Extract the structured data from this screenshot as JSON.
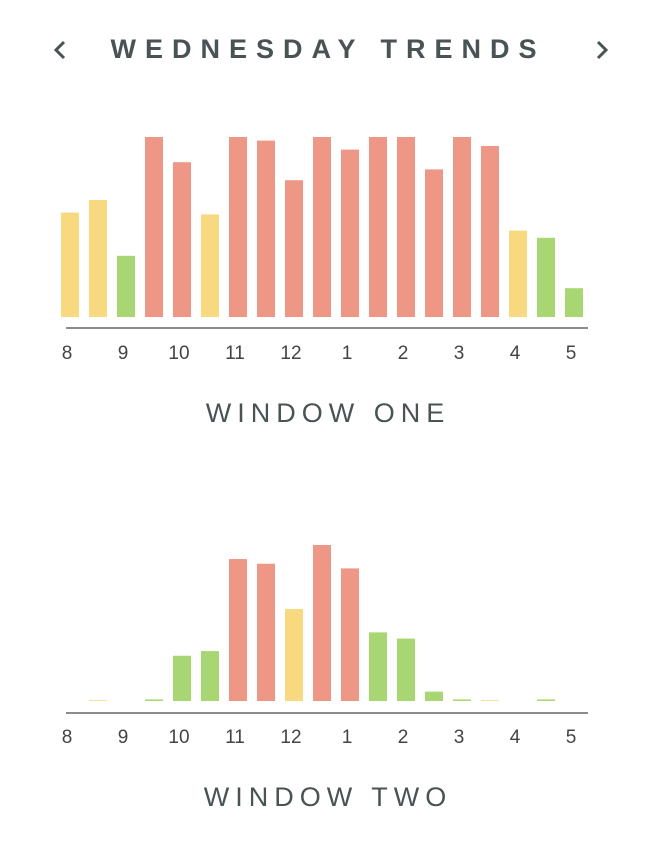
{
  "header": {
    "title": "WEDNESDAY TRENDS"
  },
  "chart_data": [
    {
      "type": "bar",
      "title": "WINDOW ONE",
      "categories": [
        "8",
        null,
        "9",
        null,
        "10",
        null,
        "11",
        null,
        "12",
        null,
        "1",
        null,
        "2",
        null,
        "3",
        null,
        "4",
        null,
        "5"
      ],
      "values": [
        58,
        65,
        34,
        100,
        86,
        57,
        100,
        98,
        76,
        100,
        93,
        100,
        100,
        82,
        100,
        95,
        48,
        44,
        16
      ],
      "colors": [
        "#f7d97f",
        "#f7d97f",
        "#a8d672",
        "#ef9787",
        "#ef9787",
        "#f7d97f",
        "#ef9787",
        "#ef9787",
        "#ef9787",
        "#ef9787",
        "#ef9787",
        "#ef9787",
        "#ef9787",
        "#ef9787",
        "#ef9787",
        "#ef9787",
        "#f7d97f",
        "#a8d672",
        "#a8d672"
      ],
      "ylim": [
        0,
        100
      ]
    },
    {
      "type": "bar",
      "title": "WINDOW TWO",
      "categories": [
        "8",
        null,
        "9",
        null,
        "10",
        null,
        "11",
        null,
        "12",
        null,
        "1",
        null,
        "2",
        null,
        "3",
        null,
        "4",
        null,
        "5"
      ],
      "values": [
        0,
        0.5,
        0,
        1,
        29,
        32,
        91,
        88,
        59,
        100,
        85,
        44,
        40,
        6,
        1,
        0.5,
        0,
        1,
        0
      ],
      "colors": [
        "#a8d672",
        "#f7d97f",
        "#a8d672",
        "#a8d672",
        "#a8d672",
        "#a8d672",
        "#ef9787",
        "#ef9787",
        "#f7d97f",
        "#ef9787",
        "#ef9787",
        "#a8d672",
        "#a8d672",
        "#a8d672",
        "#a8d672",
        "#f7d97f",
        "#a8d672",
        "#a8d672",
        "#a8d672"
      ],
      "ylim": [
        0,
        100
      ]
    }
  ]
}
